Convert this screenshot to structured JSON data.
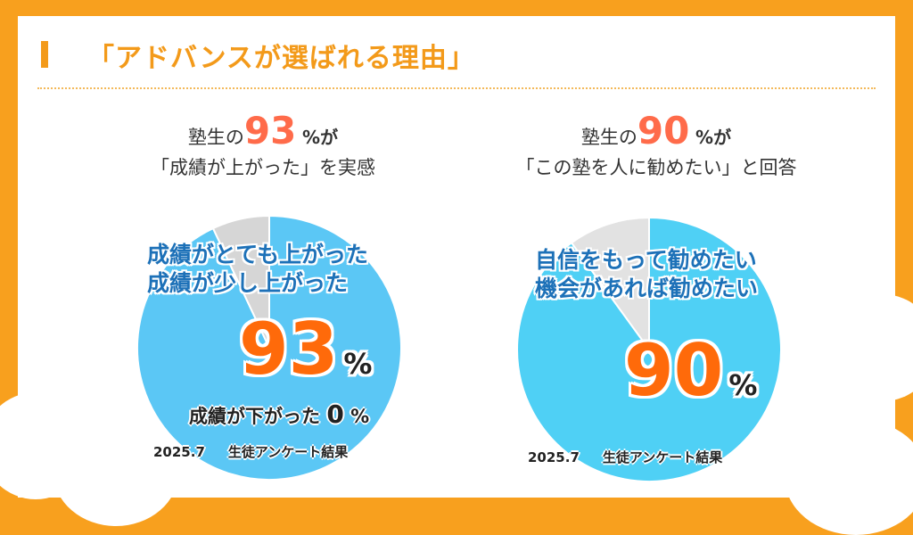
{
  "title": "「アドバンスが選ばれる理由」",
  "left": {
    "line1_prefix": "塾生の",
    "line1_number": "93",
    "line1_suffix": "%が",
    "line2": "「成績が上がった」を実感",
    "pie_label_1": "成績がとても上がった",
    "pie_label_2": "成績が少し上がった",
    "value_num": "93",
    "value_unit": "%",
    "minor_prefix": "成績が下がった",
    "minor_num": "0",
    "minor_unit": "%",
    "source_date": "2025.7",
    "source_label": "生徒アンケート結果"
  },
  "right": {
    "line1_prefix": "塾生の",
    "line1_number": "90",
    "line1_suffix": "%が",
    "line2": "「この塾を人に勧めたい」と回答",
    "pie_label_1": "自信をもって勧めたい",
    "pie_label_2": "機会があれば勧めたい",
    "value_num": "90",
    "value_unit": "%",
    "source_date": "2025.7",
    "source_label": "生徒アンケート結果"
  },
  "chart_data": [
    {
      "type": "pie",
      "title": "「成績が上がった」を実感",
      "slices": [
        {
          "label": "成績がとても上がった / 成績が少し上がった",
          "value": 93,
          "color": "#5bc7f5"
        },
        {
          "label": "",
          "value": 7,
          "color": "#d6d6d6"
        },
        {
          "label": "成績が下がった",
          "value": 0,
          "color": "#9e9e9e"
        }
      ]
    },
    {
      "type": "pie",
      "title": "「この塾を人に勧めたい」と回答",
      "slices": [
        {
          "label": "自信をもって勧めたい / 機会があれば勧めたい",
          "value": 90,
          "color": "#4fd0f5"
        },
        {
          "label": "",
          "value": 10,
          "color": "#e2e2e2"
        }
      ]
    }
  ],
  "colors": {
    "accent": "#f39a1a",
    "highlight_number": "#ff6b4a",
    "value_orange": "#ff6a0a",
    "label_blue": "#1d71b8"
  }
}
